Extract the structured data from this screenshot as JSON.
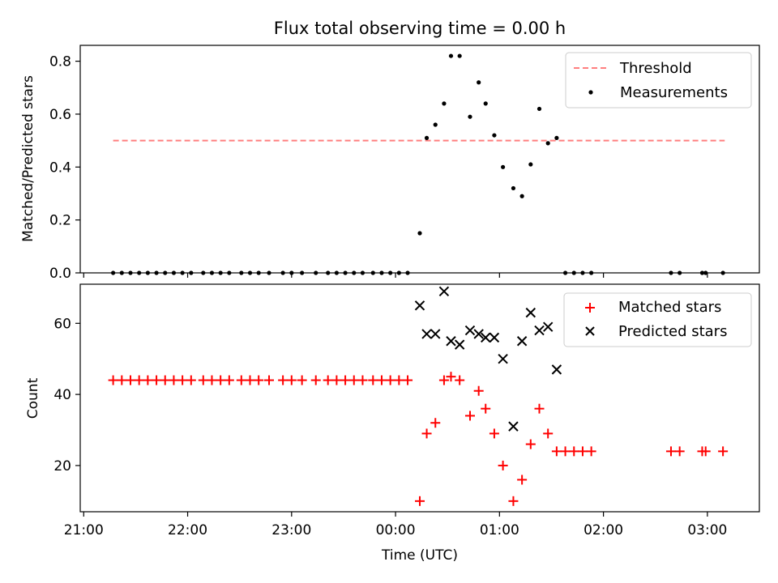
{
  "figure": {
    "title": "Flux total observing time = 0.00 h",
    "xlabel": "Time (UTC)"
  },
  "chart_data": [
    {
      "type": "scatter",
      "ylabel": "Matched/Predicted stars",
      "ylim": [
        0,
        0.86
      ],
      "xlim": [
        "20:58",
        "03:30"
      ],
      "yticks": [
        0.0,
        0.2,
        0.4,
        0.6,
        0.8
      ],
      "xticks": [
        "21:00",
        "22:00",
        "23:00",
        "00:00",
        "01:00",
        "02:00",
        "03:00"
      ],
      "xtick_labels_visible": false,
      "legend": "top-right",
      "threshold": {
        "name": "Threshold",
        "value": 0.5,
        "x_from": "21:17",
        "x_to": "03:10",
        "color": "#ff7f7f",
        "style": "dashed"
      },
      "series": [
        {
          "name": "Measurements",
          "color": "#000000",
          "marker": "dot",
          "points": [
            [
              "21:17",
              0
            ],
            [
              "21:22",
              0
            ],
            [
              "21:27",
              0
            ],
            [
              "21:32",
              0
            ],
            [
              "21:37",
              0
            ],
            [
              "21:42",
              0
            ],
            [
              "21:47",
              0
            ],
            [
              "21:52",
              0
            ],
            [
              "21:57",
              0
            ],
            [
              "22:02",
              0
            ],
            [
              "22:09",
              0
            ],
            [
              "22:14",
              0
            ],
            [
              "22:19",
              0
            ],
            [
              "22:24",
              0
            ],
            [
              "22:31",
              0
            ],
            [
              "22:36",
              0
            ],
            [
              "22:41",
              0
            ],
            [
              "22:47",
              0
            ],
            [
              "22:55",
              0
            ],
            [
              "23:00",
              0
            ],
            [
              "23:06",
              0
            ],
            [
              "23:14",
              0
            ],
            [
              "23:21",
              0
            ],
            [
              "23:26",
              0
            ],
            [
              "23:31",
              0
            ],
            [
              "23:36",
              0
            ],
            [
              "23:41",
              0
            ],
            [
              "23:47",
              0
            ],
            [
              "23:52",
              0
            ],
            [
              "23:57",
              0
            ],
            [
              "00:02",
              0
            ],
            [
              "00:07",
              0
            ],
            [
              "00:14",
              0.15
            ],
            [
              "00:18",
              0.51
            ],
            [
              "00:23",
              0.56
            ],
            [
              "00:28",
              0.64
            ],
            [
              "00:32",
              0.82
            ],
            [
              "00:37",
              0.82
            ],
            [
              "00:43",
              0.59
            ],
            [
              "00:48",
              0.72
            ],
            [
              "00:52",
              0.64
            ],
            [
              "00:57",
              0.52
            ],
            [
              "01:02",
              0.4
            ],
            [
              "01:08",
              0.32
            ],
            [
              "01:13",
              0.29
            ],
            [
              "01:18",
              0.41
            ],
            [
              "01:23",
              0.62
            ],
            [
              "01:28",
              0.49
            ],
            [
              "01:33",
              0.51
            ],
            [
              "01:38",
              0
            ],
            [
              "01:43",
              0
            ],
            [
              "01:48",
              0
            ],
            [
              "01:53",
              0
            ],
            [
              "02:39",
              0
            ],
            [
              "02:44",
              0
            ],
            [
              "02:57",
              0
            ],
            [
              "02:59",
              0
            ],
            [
              "03:09",
              0
            ]
          ]
        }
      ]
    },
    {
      "type": "scatter",
      "ylabel": "Count",
      "ylim": [
        7,
        71
      ],
      "xlim": [
        "20:58",
        "03:30"
      ],
      "yticks": [
        20,
        40,
        60
      ],
      "xticks": [
        "21:00",
        "22:00",
        "23:00",
        "00:00",
        "01:00",
        "02:00",
        "03:00"
      ],
      "legend": "top-right",
      "series": [
        {
          "name": "Matched stars",
          "color": "#ff0000",
          "marker": "plus",
          "points": [
            [
              "21:17",
              44
            ],
            [
              "21:22",
              44
            ],
            [
              "21:27",
              44
            ],
            [
              "21:32",
              44
            ],
            [
              "21:37",
              44
            ],
            [
              "21:42",
              44
            ],
            [
              "21:47",
              44
            ],
            [
              "21:52",
              44
            ],
            [
              "21:57",
              44
            ],
            [
              "22:02",
              44
            ],
            [
              "22:09",
              44
            ],
            [
              "22:14",
              44
            ],
            [
              "22:19",
              44
            ],
            [
              "22:24",
              44
            ],
            [
              "22:31",
              44
            ],
            [
              "22:36",
              44
            ],
            [
              "22:41",
              44
            ],
            [
              "22:47",
              44
            ],
            [
              "22:55",
              44
            ],
            [
              "23:00",
              44
            ],
            [
              "23:06",
              44
            ],
            [
              "23:14",
              44
            ],
            [
              "23:21",
              44
            ],
            [
              "23:26",
              44
            ],
            [
              "23:31",
              44
            ],
            [
              "23:36",
              44
            ],
            [
              "23:41",
              44
            ],
            [
              "23:47",
              44
            ],
            [
              "23:52",
              44
            ],
            [
              "23:57",
              44
            ],
            [
              "00:02",
              44
            ],
            [
              "00:07",
              44
            ],
            [
              "00:14",
              10
            ],
            [
              "00:18",
              29
            ],
            [
              "00:23",
              32
            ],
            [
              "00:28",
              44
            ],
            [
              "00:32",
              45
            ],
            [
              "00:37",
              44
            ],
            [
              "00:43",
              34
            ],
            [
              "00:48",
              41
            ],
            [
              "00:52",
              36
            ],
            [
              "00:57",
              29
            ],
            [
              "01:02",
              20
            ],
            [
              "01:08",
              10
            ],
            [
              "01:13",
              16
            ],
            [
              "01:18",
              26
            ],
            [
              "01:23",
              36
            ],
            [
              "01:28",
              29
            ],
            [
              "01:33",
              24
            ],
            [
              "01:38",
              24
            ],
            [
              "01:43",
              24
            ],
            [
              "01:48",
              24
            ],
            [
              "01:53",
              24
            ],
            [
              "02:39",
              24
            ],
            [
              "02:44",
              24
            ],
            [
              "02:57",
              24
            ],
            [
              "02:59",
              24
            ],
            [
              "03:09",
              24
            ]
          ]
        },
        {
          "name": "Predicted stars",
          "color": "#000000",
          "marker": "cross",
          "points": [
            [
              "00:14",
              65
            ],
            [
              "00:18",
              57
            ],
            [
              "00:23",
              57
            ],
            [
              "00:28",
              69
            ],
            [
              "00:32",
              55
            ],
            [
              "00:37",
              54
            ],
            [
              "00:43",
              58
            ],
            [
              "00:48",
              57
            ],
            [
              "00:52",
              56
            ],
            [
              "00:57",
              56
            ],
            [
              "01:02",
              50
            ],
            [
              "01:08",
              31
            ],
            [
              "01:13",
              55
            ],
            [
              "01:18",
              63
            ],
            [
              "01:23",
              58
            ],
            [
              "01:28",
              59
            ],
            [
              "01:33",
              47
            ]
          ]
        }
      ]
    }
  ]
}
